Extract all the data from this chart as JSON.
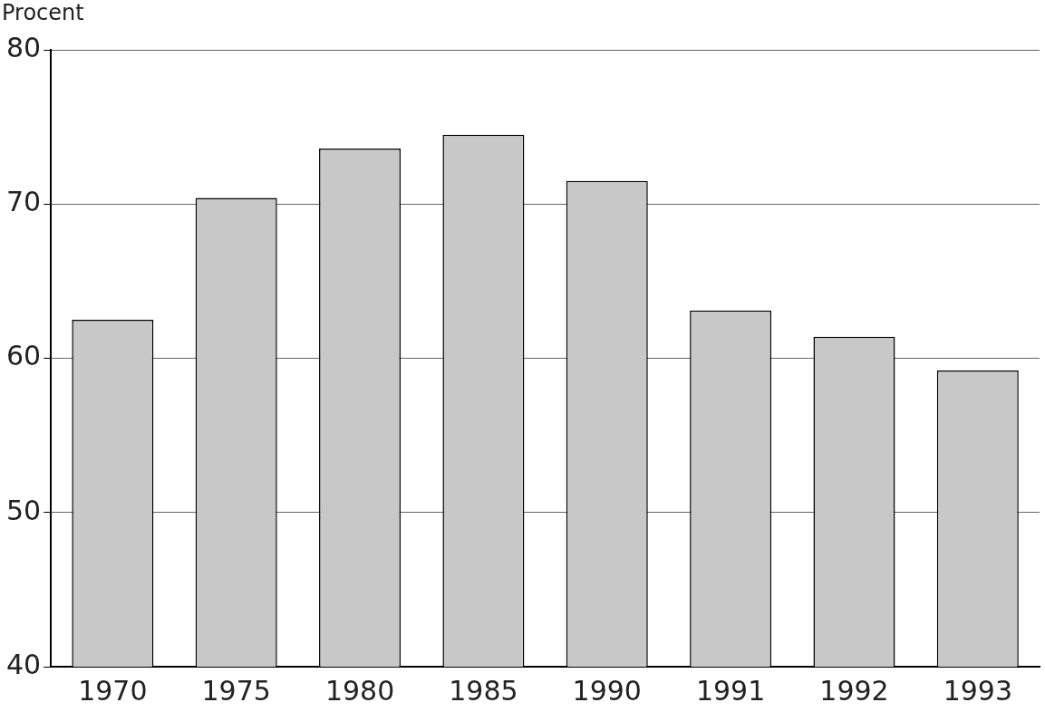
{
  "chart_data": {
    "type": "bar",
    "ylabel": "Procent",
    "categories": [
      "1970",
      "1975",
      "1980",
      "1985",
      "1990",
      "1991",
      "1992",
      "1993"
    ],
    "values": [
      62.5,
      70.4,
      73.6,
      74.5,
      71.5,
      63.1,
      61.4,
      59.2
    ],
    "color": "#c8c8c8",
    "ylim": [
      40,
      80
    ],
    "yticks": [
      40,
      50,
      60,
      70,
      80
    ],
    "grid": "y",
    "legend": false
  }
}
